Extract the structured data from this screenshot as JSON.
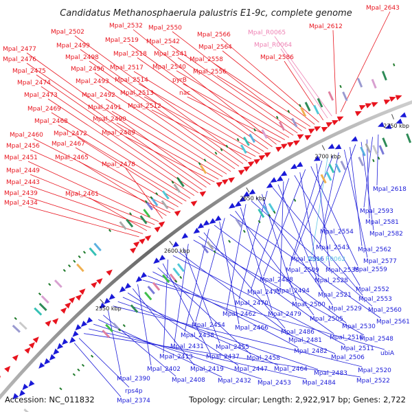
{
  "title": "Candidatus Methanosphaerula palustris E1-9c, complete genome",
  "footer": {
    "accession": "Accession: NC_011832",
    "summary": "Topology: circular; Length: 2,922,917 bp; Genes: 2,722"
  },
  "colors": {
    "forward": "#e8141e",
    "reverse": "#1a1ad8",
    "rna": "#ee82b4",
    "rna_reverse": "#64c8e6",
    "backbone": "#777777"
  },
  "ticks": [
    {
      "label": "2550 kbp"
    },
    {
      "label": "2600 kbp"
    },
    {
      "label": "2650 kbp"
    },
    {
      "label": "2700 kbp"
    },
    {
      "label": "2750 kbp"
    }
  ],
  "forward_labels": [
    {
      "text": "Mpal_2643"
    },
    {
      "text": "Mpal_2612"
    },
    {
      "text": "Mpal_R0065"
    },
    {
      "text": "Mpal_R0064"
    },
    {
      "text": "Mpal_2586"
    },
    {
      "text": "Mpal_2566"
    },
    {
      "text": "Mpal_2564"
    },
    {
      "text": "Mpal_2558"
    },
    {
      "text": "Mpal_2556"
    },
    {
      "text": "Mpal_2550"
    },
    {
      "text": "Mpal_2542"
    },
    {
      "text": "Mpal_2541"
    },
    {
      "text": "Mpal_2540"
    },
    {
      "text": "pyrB"
    },
    {
      "text": "nac"
    },
    {
      "text": "Mpal_2532"
    },
    {
      "text": "Mpal_2519"
    },
    {
      "text": "Mpal_2518"
    },
    {
      "text": "Mpal_2517"
    },
    {
      "text": "Mpal_2514"
    },
    {
      "text": "Mpal_2513"
    },
    {
      "text": "Mpal_2512"
    },
    {
      "text": "Mpal_2502"
    },
    {
      "text": "Mpal_2499"
    },
    {
      "text": "Mpal_2498"
    },
    {
      "text": "Mpal_2496"
    },
    {
      "text": "Mpal_2493"
    },
    {
      "text": "Mpal_2492"
    },
    {
      "text": "Mpal_2491"
    },
    {
      "text": "Mpal_2490"
    },
    {
      "text": "Mpal_2489"
    },
    {
      "text": "Mpal_2477"
    },
    {
      "text": "Mpal_2476"
    },
    {
      "text": "Mpal_2475"
    },
    {
      "text": "Mpal_2474"
    },
    {
      "text": "Mpal_2473"
    },
    {
      "text": "Mpal_2469"
    },
    {
      "text": "Mpal_2468"
    },
    {
      "text": "Mpal_2472"
    },
    {
      "text": "Mpal_2467"
    },
    {
      "text": "Mpal_2460"
    },
    {
      "text": "Mpal_2456"
    },
    {
      "text": "Mpal_2465"
    },
    {
      "text": "Mpal_2478"
    },
    {
      "text": "Mpal_2451"
    },
    {
      "text": "Mpal_2449"
    },
    {
      "text": "Mpal_2443"
    },
    {
      "text": "Mpal_2461"
    },
    {
      "text": "Mpal_2439"
    },
    {
      "text": "Mpal_2434"
    }
  ],
  "reverse_labels": [
    {
      "text": "Mpal_2618"
    },
    {
      "text": "Mpal_2593"
    },
    {
      "text": "Mpal_2581"
    },
    {
      "text": "Mpal_2582"
    },
    {
      "text": "Mpal_2554"
    },
    {
      "text": "Mpal_2562"
    },
    {
      "text": "Mpal_2577"
    },
    {
      "text": "Mpal_2543"
    },
    {
      "text": "Mpal_2516"
    },
    {
      "text": "Mpal_R0062"
    },
    {
      "text": "Mpal_2509"
    },
    {
      "text": "Mpal_2538"
    },
    {
      "text": "Mpal_2559"
    },
    {
      "text": "Mpal_2488"
    },
    {
      "text": "Mpal_2528"
    },
    {
      "text": "Mpal_2552"
    },
    {
      "text": "Mpal_2471"
    },
    {
      "text": "Mpal_2494"
    },
    {
      "text": "Mpal_2521"
    },
    {
      "text": "Mpal_2553"
    },
    {
      "text": "Mpal_2470"
    },
    {
      "text": "Mpal_2500"
    },
    {
      "text": "Mpal_2529"
    },
    {
      "text": "Mpal_2560"
    },
    {
      "text": "Mpal_2462"
    },
    {
      "text": "Mpal_2479"
    },
    {
      "text": "Mpal_2505"
    },
    {
      "text": "Mpal_2561"
    },
    {
      "text": "Mpal_2454"
    },
    {
      "text": "Mpal_2466"
    },
    {
      "text": "Mpal_2530"
    },
    {
      "text": "Mpal_2438"
    },
    {
      "text": "Mpal_2486"
    },
    {
      "text": "Mpal_2510"
    },
    {
      "text": "Mpal_2548"
    },
    {
      "text": "Mpal_2431"
    },
    {
      "text": "Mpal_2455"
    },
    {
      "text": "Mpal_2481"
    },
    {
      "text": "Mpal_2511"
    },
    {
      "text": "Mpal_2413"
    },
    {
      "text": "Mpal_2437"
    },
    {
      "text": "Mpal_2458"
    },
    {
      "text": "Mpal_2482"
    },
    {
      "text": "Mpal_2506"
    },
    {
      "text": "ubiA"
    },
    {
      "text": "Mpal_2402"
    },
    {
      "text": "Mpal_2419"
    },
    {
      "text": "Mpal_2447"
    },
    {
      "text": "Mpal_2464"
    },
    {
      "text": "Mpal_2483"
    },
    {
      "text": "Mpal_2520"
    },
    {
      "text": "Mpal_2390"
    },
    {
      "text": "Mpal_2408"
    },
    {
      "text": "Mpal_2432"
    },
    {
      "text": "Mpal_2453"
    },
    {
      "text": "Mpal_2484"
    },
    {
      "text": "Mpal_2522"
    },
    {
      "text": "rps4p"
    },
    {
      "text": "Mpal_2374"
    }
  ]
}
